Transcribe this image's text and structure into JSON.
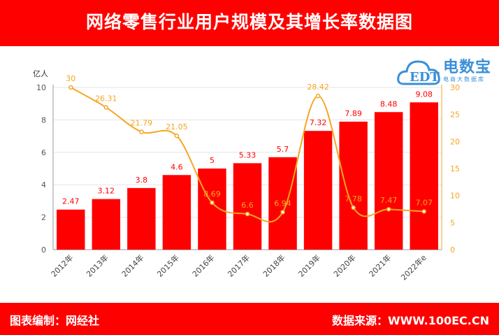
{
  "header": {
    "title": "网络零售行业用户规模及其增长率数据图"
  },
  "footer": {
    "left": "图表编制：网经社",
    "right": "数据来源：WWW.100EC.CN"
  },
  "logo": {
    "brand": "电数宝",
    "sub": "电商大数据库",
    "edt": "EDT"
  },
  "colors": {
    "bar": "#ff0000",
    "line": "#f5a623",
    "header": "#ff0000",
    "logo": "#3a8fd8"
  },
  "chart_data": {
    "type": "bar",
    "categories": [
      "2012年",
      "2013年",
      "2014年",
      "2015年",
      "2016年",
      "2017年",
      "2018年",
      "2019年",
      "2020年",
      "2021年",
      "2022年e"
    ],
    "series": [
      {
        "values": [
          2.47,
          3.12,
          3.8,
          4.6,
          5,
          5.33,
          5.7,
          7.32,
          7.89,
          8.48,
          9.08
        ],
        "type": "bar",
        "axis": "left"
      },
      {
        "values": [
          30,
          26.31,
          21.79,
          21.05,
          8.69,
          6.6,
          6.94,
          28.42,
          7.78,
          7.47,
          7.07
        ],
        "type": "line",
        "axis": "right"
      }
    ],
    "ylabel": "亿人",
    "ylim": [
      0,
      10
    ],
    "y_ticks": [
      0,
      2,
      4,
      6,
      8,
      10
    ],
    "y2lim": [
      0,
      30
    ],
    "y2_ticks": [
      0,
      5,
      10,
      15,
      20,
      25,
      30
    ],
    "grid": true,
    "legend": "none"
  }
}
